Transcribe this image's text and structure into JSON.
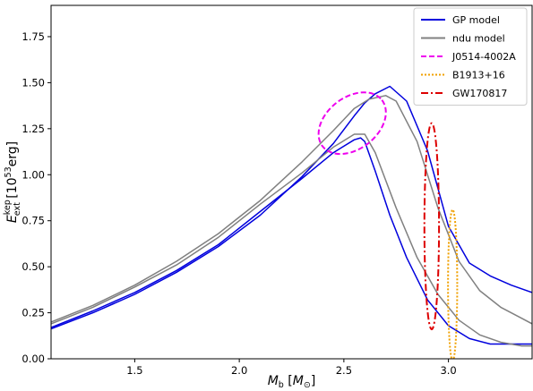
{
  "chart_data": {
    "type": "line",
    "xlabel": "M_b [M_⊙]",
    "xlabel_parts": {
      "main": "M",
      "sub": "b",
      "bracket_open": " [",
      "unit_main": "M",
      "unit_sub": "⊙",
      "bracket_close": "]"
    },
    "ylabel": "E_ext^kep [10^53 erg]",
    "ylabel_parts": {
      "main": "E",
      "sub": "ext",
      "sup": "kep",
      "unit_open": " [10",
      "unit_sup": "53",
      "unit_close": "erg]"
    },
    "xlim": [
      1.1,
      3.4
    ],
    "ylim": [
      0.0,
      1.92
    ],
    "xticks": [
      1.5,
      2.0,
      2.5,
      3.0
    ],
    "xtick_labels": [
      "1.5",
      "2.0",
      "2.5",
      "3.0"
    ],
    "yticks": [
      0.0,
      0.25,
      0.5,
      0.75,
      1.0,
      1.25,
      1.5,
      1.75
    ],
    "ytick_labels": [
      "0.00",
      "0.25",
      "0.50",
      "0.75",
      "1.00",
      "1.25",
      "1.50",
      "1.75"
    ],
    "grid": false,
    "legend_position": "top-right",
    "series": [
      {
        "name": "GP model",
        "color": "#0000dd",
        "style": "solid",
        "x": [
          1.1,
          1.3,
          1.5,
          1.7,
          1.9,
          2.1,
          2.3,
          2.45,
          2.55,
          2.6,
          2.65,
          2.72,
          2.8,
          2.9,
          3.0,
          3.1,
          3.2,
          3.3,
          3.4
        ],
        "y": [
          0.163,
          0.25,
          0.35,
          0.47,
          0.61,
          0.78,
          0.99,
          1.17,
          1.32,
          1.39,
          1.44,
          1.48,
          1.4,
          1.13,
          0.72,
          0.52,
          0.45,
          0.4,
          0.36
        ]
      },
      {
        "name": "GP model",
        "color": "#0000dd",
        "style": "solid",
        "x": [
          1.1,
          1.3,
          1.5,
          1.7,
          1.9,
          2.1,
          2.3,
          2.45,
          2.55,
          2.58,
          2.6,
          2.65,
          2.72,
          2.8,
          2.9,
          3.0,
          3.1,
          3.2,
          3.3,
          3.4
        ],
        "y": [
          0.17,
          0.26,
          0.36,
          0.48,
          0.62,
          0.8,
          0.98,
          1.12,
          1.19,
          1.2,
          1.18,
          1.02,
          0.78,
          0.55,
          0.32,
          0.18,
          0.11,
          0.08,
          0.08,
          0.08
        ]
      },
      {
        "name": "ndu model",
        "color": "#808080",
        "style": "solid",
        "x": [
          1.1,
          1.3,
          1.5,
          1.7,
          1.9,
          2.1,
          2.3,
          2.45,
          2.55,
          2.62,
          2.7,
          2.75,
          2.85,
          2.95,
          3.05,
          3.15,
          3.25,
          3.35,
          3.4
        ],
        "y": [
          0.2,
          0.29,
          0.4,
          0.53,
          0.68,
          0.86,
          1.07,
          1.24,
          1.36,
          1.41,
          1.43,
          1.4,
          1.18,
          0.82,
          0.53,
          0.37,
          0.28,
          0.22,
          0.19
        ]
      },
      {
        "name": "ndu model",
        "color": "#808080",
        "style": "solid",
        "x": [
          1.1,
          1.3,
          1.5,
          1.7,
          1.9,
          2.1,
          2.3,
          2.45,
          2.55,
          2.6,
          2.65,
          2.75,
          2.85,
          2.95,
          3.05,
          3.15,
          3.25,
          3.35,
          3.4
        ],
        "y": [
          0.19,
          0.28,
          0.39,
          0.51,
          0.66,
          0.84,
          1.01,
          1.15,
          1.22,
          1.22,
          1.12,
          0.82,
          0.55,
          0.35,
          0.21,
          0.13,
          0.09,
          0.07,
          0.07
        ]
      }
    ],
    "contours": [
      {
        "name": "J0514-4002A",
        "color": "#ee00ee",
        "style": "dashed",
        "cx": 2.54,
        "cy": 1.28,
        "rx": 0.18,
        "ry": 0.14,
        "tilt_deg": 38
      },
      {
        "name": "B1913+16",
        "color": "#f0a000",
        "style": "dotted",
        "cx": 3.02,
        "cy": 0.4,
        "rx": 0.022,
        "ry": 0.41,
        "tilt_deg": 0
      },
      {
        "name": "GW170817",
        "color": "#dd0000",
        "style": "dashdot",
        "cx": 2.92,
        "cy": 0.72,
        "rx": 0.035,
        "ry": 0.56,
        "tilt_deg": 0
      }
    ],
    "legend": [
      "GP model",
      "ndu model",
      "J0514-4002A",
      "B1913+16",
      "GW170817"
    ]
  }
}
